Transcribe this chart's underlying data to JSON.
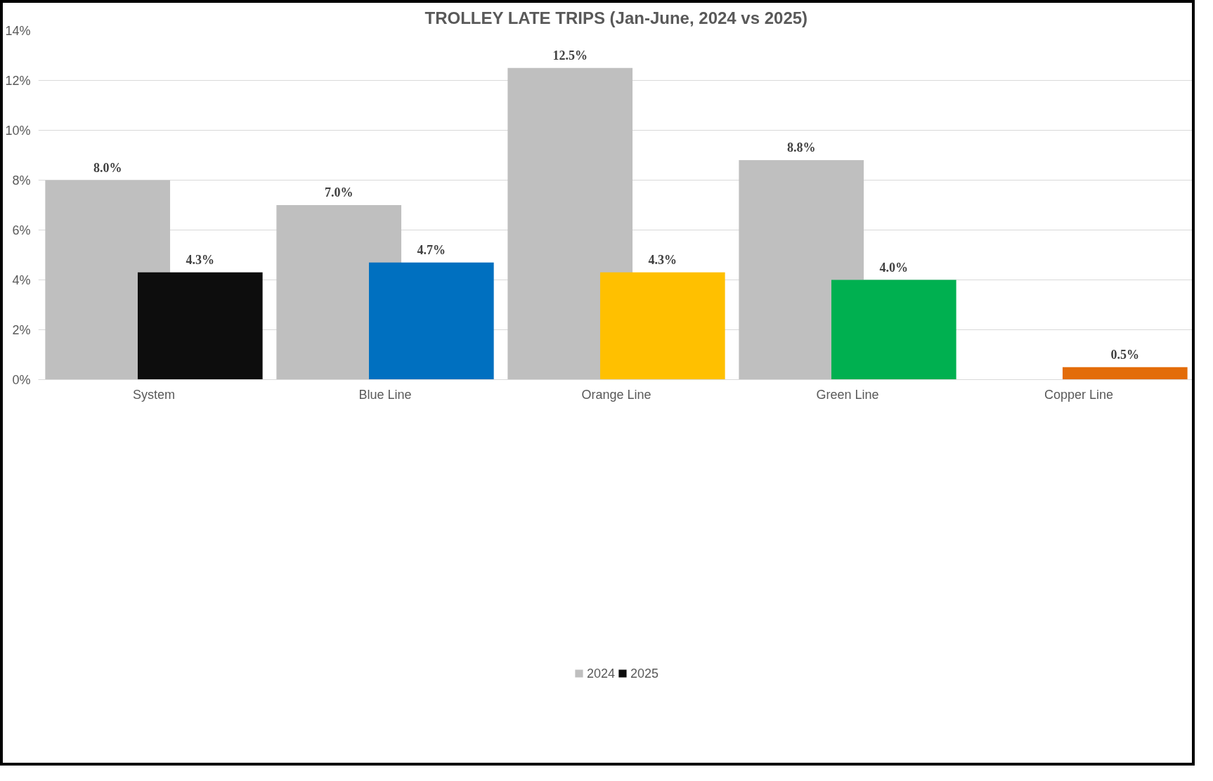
{
  "chart_data": {
    "type": "bar",
    "title": "TROLLEY LATE TRIPS (Jan-June, 2024 vs 2025)",
    "categories": [
      "System",
      "Blue Line",
      "Orange Line",
      "Green Line",
      "Copper Line"
    ],
    "series": [
      {
        "name": "2024",
        "color": "#bfbfbf",
        "values": [
          8.0,
          7.0,
          12.5,
          8.8,
          null
        ],
        "value_labels": [
          "8.0%",
          "7.0%",
          "12.5%",
          "8.8%",
          null
        ]
      },
      {
        "name": "2025",
        "colors": [
          "#0d0d0d",
          "#0070c0",
          "#ffc000",
          "#00b050",
          "#e36c09"
        ],
        "values": [
          4.3,
          4.7,
          4.3,
          4.0,
          0.5
        ],
        "value_labels": [
          "4.3%",
          "4.7%",
          "4.3%",
          "4.0%",
          "0.5%"
        ]
      }
    ],
    "ylim": [
      0,
      14
    ],
    "yticks": [
      {
        "value": 0,
        "label": "0%"
      },
      {
        "value": 2,
        "label": "2%"
      },
      {
        "value": 4,
        "label": "4%"
      },
      {
        "value": 6,
        "label": "6%"
      },
      {
        "value": 8,
        "label": "8%"
      },
      {
        "value": 10,
        "label": "10%"
      },
      {
        "value": 12,
        "label": "12%"
      },
      {
        "value": 14,
        "label": "14%"
      }
    ],
    "grid": "y",
    "legend": "bottom"
  }
}
